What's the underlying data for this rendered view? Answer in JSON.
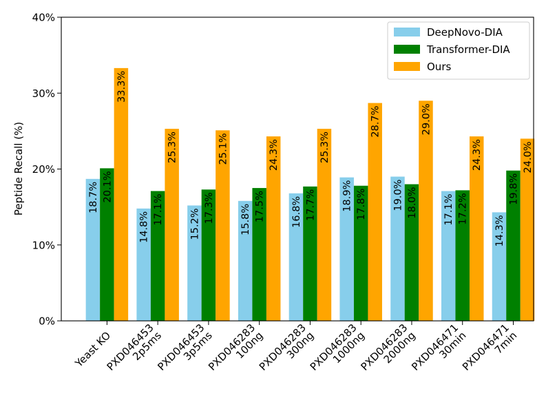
{
  "chart_data": {
    "type": "bar",
    "title": "",
    "xlabel": "",
    "ylabel": "Peptide Recall (%)",
    "ylim": [
      0,
      40
    ],
    "yticks": [
      "0%",
      "10%",
      "20%",
      "30%",
      "40%"
    ],
    "ytick_values": [
      0,
      10,
      20,
      30,
      40
    ],
    "grid": false,
    "legend_position": "top-right",
    "categories": [
      [
        "Yeast KO"
      ],
      [
        "PXD046453",
        "2p5ms"
      ],
      [
        "PXD046453",
        "3p5ms"
      ],
      [
        "PXD046283",
        "100ng"
      ],
      [
        "PXD046283",
        "300ng"
      ],
      [
        "PXD046283",
        "1000ng"
      ],
      [
        "PXD046283",
        "2000ng"
      ],
      [
        "PXD046471",
        "30min"
      ],
      [
        "PXD046471",
        "7min"
      ]
    ],
    "series": [
      {
        "name": "DeepNovo-DIA",
        "color": "#87ceeb",
        "values": [
          18.7,
          14.8,
          15.2,
          15.8,
          16.8,
          18.9,
          19.0,
          17.1,
          14.3
        ],
        "labels": [
          "18.7%",
          "14.8%",
          "15.2%",
          "15.8%",
          "16.8%",
          "18.9%",
          "19.0%",
          "17.1%",
          "14.3%"
        ]
      },
      {
        "name": "Transformer-DIA",
        "color": "#008000",
        "values": [
          20.1,
          17.1,
          17.3,
          17.5,
          17.7,
          17.8,
          18.0,
          17.2,
          19.8
        ],
        "labels": [
          "20.1%",
          "17.1%",
          "17.3%",
          "17.5%",
          "17.7%",
          "17.8%",
          "18.0%",
          "17.2%",
          "19.8%"
        ]
      },
      {
        "name": "Ours",
        "color": "#ffa500",
        "values": [
          33.3,
          25.3,
          25.1,
          24.3,
          25.3,
          28.7,
          29.0,
          24.3,
          24.0
        ],
        "labels": [
          "33.3%",
          "25.3%",
          "25.1%",
          "24.3%",
          "25.3%",
          "28.7%",
          "29.0%",
          "24.3%",
          "24.0%"
        ]
      }
    ]
  }
}
